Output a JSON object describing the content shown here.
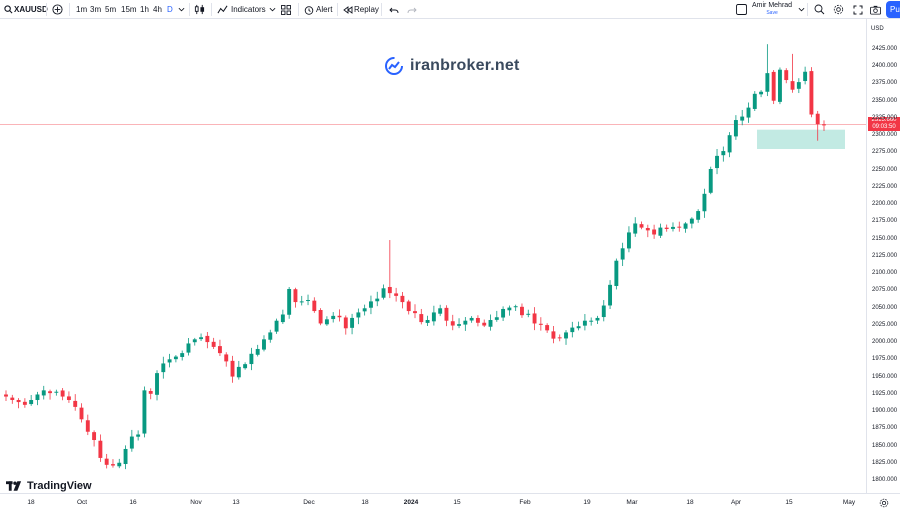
{
  "toolbar": {
    "symbol": "XAUUSD",
    "intervals": [
      "1m",
      "3m",
      "5m",
      "15m",
      "1h",
      "4h",
      "D"
    ],
    "active_interval": "D",
    "indicators_label": "Indicators",
    "alert_label": "Alert",
    "replay_label": "Replay",
    "user_name": "Amir Mehrad",
    "user_sub": "Save",
    "publish_label": "Pu"
  },
  "watermark": {
    "text": "iranbroker.net"
  },
  "logo": {
    "text": "TradingView"
  },
  "colors": {
    "up": "#089981",
    "down": "#f23645",
    "zone": "#8fd9cc",
    "crosshair": "#f23645",
    "accent": "#2962ff"
  },
  "price_scale": {
    "currency": "USD",
    "labels": [
      "2425.000",
      "2400.000",
      "2375.000",
      "2350.000",
      "2325.000",
      "2300.000",
      "2275.000",
      "2250.000",
      "2225.000",
      "2200.000",
      "2175.000",
      "2150.000",
      "2125.000",
      "2100.000",
      "2075.000",
      "2050.000",
      "2025.000",
      "2000.000",
      "1975.000",
      "1950.000",
      "1925.000",
      "1900.000",
      "1875.000",
      "1850.000",
      "1825.000",
      "1800.000"
    ],
    "last_price": "2315.660",
    "countdown": "09:03:50"
  },
  "time_scale": {
    "labels": [
      "18",
      "Oct",
      "16",
      "Nov",
      "13",
      "Dec",
      "18",
      "2024",
      "15",
      "Feb",
      "19",
      "Mar",
      "18",
      "Apr",
      "15",
      "May"
    ]
  },
  "chart_data": {
    "type": "candlestick",
    "symbol": "XAUUSD",
    "timeframe": "D",
    "y_range": [
      1795,
      2445
    ],
    "highlight_zone": [
      2280,
      2308
    ],
    "last_price": 2315.66,
    "closes": [
      1921,
      1916,
      1913,
      1909,
      1916,
      1924,
      1930,
      1926,
      1928,
      1921,
      1916,
      1906,
      1888,
      1870,
      1858,
      1832,
      1822,
      1821,
      1825,
      1845,
      1863,
      1866,
      1930,
      1925,
      1955,
      1969,
      1975,
      1979,
      1984,
      1998,
      2004,
      2007,
      2000,
      1993,
      1984,
      1972,
      1950,
      1964,
      1968,
      1983,
      1990,
      2004,
      2014,
      2031,
      2040,
      2077,
      2058,
      2059,
      2061,
      2045,
      2027,
      2033,
      2038,
      2036,
      2020,
      2035,
      2043,
      2049,
      2059,
      2063,
      2078,
      2071,
      2067,
      2058,
      2045,
      2042,
      2029,
      2032,
      2043,
      2049,
      2031,
      2024,
      2026,
      2031,
      2035,
      2028,
      2024,
      2032,
      2036,
      2048,
      2050,
      2052,
      2039,
      2041,
      2027,
      2025,
      2017,
      2005,
      2006,
      2014,
      2021,
      2023,
      2031,
      2031,
      2035,
      2053,
      2083,
      2118,
      2136,
      2159,
      2172,
      2166,
      2162,
      2156,
      2166,
      2164,
      2167,
      2166,
      2172,
      2179,
      2190,
      2215,
      2251,
      2270,
      2277,
      2300,
      2322,
      2327,
      2340,
      2360,
      2363,
      2390,
      2350,
      2395,
      2380,
      2366,
      2377,
      2392,
      2330,
      2316,
      2315
    ]
  }
}
